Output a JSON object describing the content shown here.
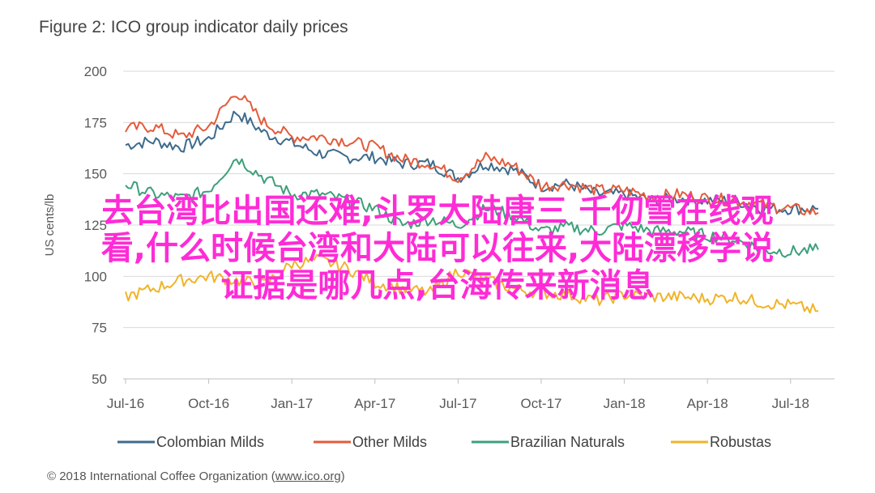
{
  "figure_title": "Figure 2: ICO group indicator daily prices",
  "footer": {
    "prefix": "© 2018 International Coffee Organization (",
    "link": "www.ico.org",
    "suffix": ")"
  },
  "overlay_text": {
    "line1": "去台湾比出国还难,斗罗大陆唐三 千仞雪在线观",
    "line2": "看,什么时候台湾和大陆可以往来,大陆漂移学说",
    "line3": "证据是哪几点,台海传来新消息"
  },
  "chart_data": {
    "type": "line",
    "title": "Figure 2: ICO group indicator daily prices",
    "ylabel": "US cents/lb",
    "xlabel": "",
    "ylim": [
      50,
      200
    ],
    "yticks": [
      50,
      75,
      100,
      125,
      150,
      175,
      200
    ],
    "x_tick_labels": [
      "Jul-16",
      "Oct-16",
      "Jan-17",
      "Apr-17",
      "Jul-17",
      "Oct-17",
      "Jan-18",
      "Apr-18",
      "Jul-18"
    ],
    "x": [
      "Jul-16",
      "Aug-16",
      "Sep-16",
      "Oct-16",
      "Nov-16",
      "Dec-16",
      "Jan-17",
      "Feb-17",
      "Mar-17",
      "Apr-17",
      "May-17",
      "Jun-17",
      "Jul-17",
      "Aug-17",
      "Sep-17",
      "Oct-17",
      "Nov-17",
      "Dec-17",
      "Jan-18",
      "Feb-18",
      "Mar-18",
      "Apr-18",
      "May-18",
      "Jun-18",
      "Jul-18",
      "Aug-18"
    ],
    "grid": true,
    "legend_position": "bottom",
    "series": [
      {
        "name": "Colombian Milds",
        "color": "#3d6b8c",
        "values": [
          164,
          166,
          163,
          167,
          180,
          170,
          165,
          160,
          158,
          158,
          155,
          155,
          148,
          155,
          152,
          144,
          145,
          140,
          140,
          137,
          138,
          137,
          137,
          133,
          133,
          133
        ]
      },
      {
        "name": "Other Milds",
        "color": "#e35b3b",
        "values": [
          172,
          173,
          168,
          173,
          190,
          175,
          168,
          168,
          166,
          163,
          157,
          155,
          148,
          158,
          154,
          144,
          145,
          142,
          142,
          139,
          140,
          138,
          137,
          135,
          133,
          131
        ]
      },
      {
        "name": "Brazilian Naturals",
        "color": "#3da07a",
        "values": [
          145,
          140,
          138,
          142,
          158,
          148,
          140,
          140,
          137,
          133,
          125,
          128,
          125,
          133,
          130,
          122,
          124,
          122,
          125,
          122,
          122,
          120,
          118,
          113,
          112,
          113
        ]
      },
      {
        "name": "Robustas",
        "color": "#f0b429",
        "values": [
          90,
          94,
          98,
          100,
          98,
          96,
          106,
          108,
          104,
          97,
          94,
          92,
          103,
          98,
          94,
          92,
          91,
          88,
          91,
          90,
          90,
          89,
          90,
          87,
          86,
          83
        ]
      }
    ]
  }
}
